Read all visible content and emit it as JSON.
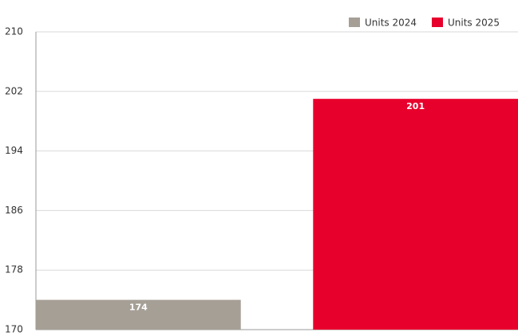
{
  "chart_data": {
    "type": "bar",
    "categories": [
      null
    ],
    "series": [
      {
        "name": "Units 2024",
        "color": "#a59f96",
        "values": [
          174
        ]
      },
      {
        "name": "Units 2025",
        "color": "#e8002d",
        "values": [
          201
        ]
      }
    ],
    "ylim": [
      170,
      210
    ],
    "yticks": [
      170,
      178,
      186,
      194,
      202,
      210
    ],
    "grid": true,
    "legend": "top-right"
  }
}
